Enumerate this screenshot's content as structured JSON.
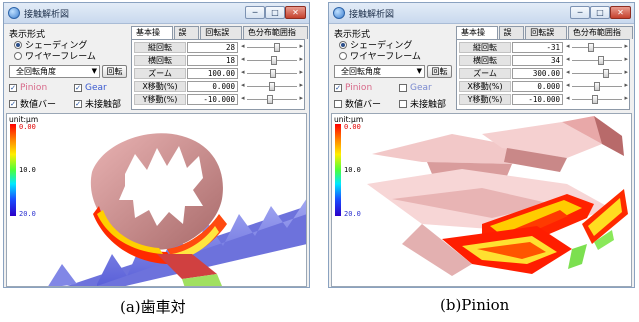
{
  "windows": [
    {
      "title": "接触解析図",
      "controls": {
        "minimize": "─",
        "maximize": "□",
        "close": "✕"
      },
      "display_mode_label": "表示形式",
      "radios": [
        {
          "label": "シェーディング",
          "checked": true
        },
        {
          "label": "ワイヤーフレーム",
          "checked": false
        }
      ],
      "view_select": "全回転角度",
      "rotate_button": "回転",
      "checks": [
        {
          "label": "Pinion",
          "checked": true,
          "color": "#d86a8a"
        },
        {
          "label": "Gear",
          "checked": true,
          "color": "#3a5ad0"
        },
        {
          "label": "数値バー",
          "checked": true,
          "color": "#000000"
        },
        {
          "label": "未接触部",
          "checked": true,
          "color": "#000000"
        }
      ],
      "tabs": [
        "基本操作",
        "誤差",
        "回転誤差",
        "色分布範囲指定"
      ],
      "params": [
        {
          "name": "縦回転",
          "value": "28",
          "level": 0.62
        },
        {
          "name": "横回転",
          "value": "18",
          "level": 0.55
        },
        {
          "name": "ズーム",
          "value": "100.00",
          "level": 0.52
        },
        {
          "name": "X移動(%)",
          "value": "0.000",
          "level": 0.5
        },
        {
          "name": "Y移動(%)",
          "value": "-10.000",
          "level": 0.45
        }
      ],
      "unit": "unit:μm",
      "colorbar": [
        "0.00",
        "10.0",
        "20.0"
      ]
    },
    {
      "title": "接触解析図",
      "controls": {
        "minimize": "─",
        "maximize": "□",
        "close": "✕"
      },
      "display_mode_label": "表示形式",
      "radios": [
        {
          "label": "シェーディング",
          "checked": true
        },
        {
          "label": "ワイヤーフレーム",
          "checked": false
        }
      ],
      "view_select": "全回転角度",
      "rotate_button": "回転",
      "checks": [
        {
          "label": "Pinion",
          "checked": true,
          "color": "#d86a8a"
        },
        {
          "label": "Gear",
          "checked": false,
          "color": "#7a8ad0"
        },
        {
          "label": "数値バー",
          "checked": false,
          "color": "#000000"
        },
        {
          "label": "未接触部",
          "checked": false,
          "color": "#000000"
        }
      ],
      "tabs": [
        "基本操作",
        "誤差",
        "回転誤差",
        "色分布範囲指定"
      ],
      "params": [
        {
          "name": "縦回転",
          "value": "-31",
          "level": 0.36
        },
        {
          "name": "横回転",
          "value": "34",
          "level": 0.6
        },
        {
          "name": "ズーム",
          "value": "300.00",
          "level": 0.7
        },
        {
          "name": "X移動(%)",
          "value": "0.000",
          "level": 0.5
        },
        {
          "name": "Y移動(%)",
          "value": "-10.000",
          "level": 0.45
        }
      ],
      "unit": "unit:μm",
      "colorbar": [
        "0.00",
        "10.0",
        "20.0"
      ]
    }
  ],
  "captions": [
    "(a)歯車対",
    "(b)Pinion"
  ]
}
